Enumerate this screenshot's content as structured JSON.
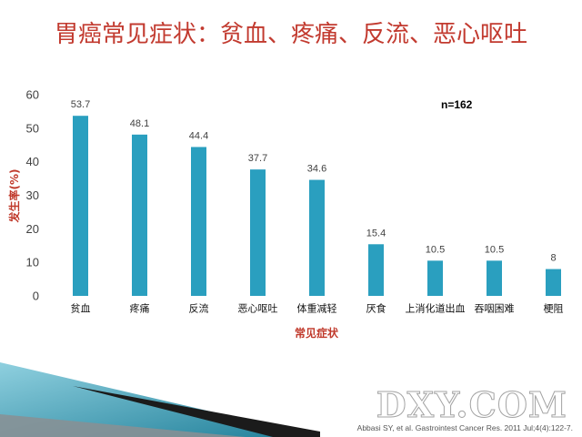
{
  "slide": {
    "citation": "Abbasi SY, et al. Gastrointest Cancer Res. 2011 Jul;4(4):122-7.",
    "watermark": "DXY.COM"
  },
  "colors": {
    "title": "#c23a2f",
    "axis_title": "#c0392b",
    "bar": "#2a9fbf",
    "text": "#404040"
  },
  "chart_data": {
    "type": "bar",
    "title": "胃癌常见症状：贫血、疼痛、反流、恶心呕吐",
    "xlabel": "常见症状",
    "ylabel": "发生率(%)",
    "categories": [
      "贫血",
      "疼痛",
      "反流",
      "恶心呕吐",
      "体重减轻",
      "厌食",
      "上消化道出血",
      "吞咽困难",
      "梗阻"
    ],
    "values": [
      53.7,
      48.1,
      44.4,
      37.7,
      34.6,
      15.4,
      10.5,
      10.5,
      8
    ],
    "ylim": [
      0,
      60
    ],
    "yticks": [
      0,
      10,
      20,
      30,
      40,
      50,
      60
    ],
    "data_labels": true,
    "grid": false,
    "legend": "none",
    "annotations": [
      {
        "text": "n=162"
      }
    ]
  }
}
